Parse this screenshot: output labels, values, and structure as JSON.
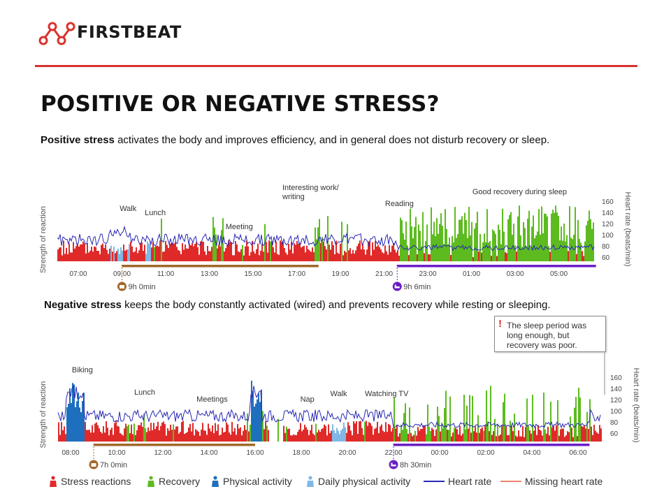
{
  "brand": {
    "name": "FIRSTBEAT",
    "accent": "#d8322e",
    "logo_icon": "molecule-icon"
  },
  "title": "POSITIVE OR NEGATIVE STRESS?",
  "positive": {
    "bold": "Positive stress",
    "text": " activates the body and improves efficiency, and in general does not disturb recovery or sleep."
  },
  "negative": {
    "bold": "Negative stress",
    "text": " keeps the body constantly activated (wired) and prevents recovery while resting or sleeping."
  },
  "callout": {
    "mark": "!",
    "text": "The sleep period was long enough, but recovery was poor."
  },
  "legend": [
    {
      "label": "Stress reactions",
      "color": "#e02a2a",
      "icon": "person-icon"
    },
    {
      "label": "Recovery",
      "color": "#5dbb1f",
      "icon": "person-icon"
    },
    {
      "label": "Physical activity",
      "color": "#1f6fbf",
      "icon": "person-icon"
    },
    {
      "label": "Daily physical activity",
      "color": "#7fb8e6",
      "icon": "person-icon"
    },
    {
      "label": "Heart rate",
      "color": "#2828b4",
      "icon": "line"
    },
    {
      "label": "Missing heart rate",
      "color": "#f08070",
      "icon": "line"
    }
  ],
  "chart_data": [
    {
      "type": "area",
      "ylabel": "Strength of reaction",
      "y2label": "Heart rate (beats/min)",
      "y2_ticks": [
        60,
        80,
        100,
        120,
        140,
        160
      ],
      "x_ticks": [
        "07:00",
        "09:00",
        "11:00",
        "13:00",
        "15:00",
        "17:00",
        "19:00",
        "21:00",
        "23:00",
        "01:00",
        "03:00",
        "05:00"
      ],
      "annotations": [
        {
          "text": "Walk",
          "at": 2.15
        },
        {
          "text": "Lunch",
          "at": 3.3
        },
        {
          "text": "Meeting",
          "at": 7.0
        },
        {
          "text": "Interesting work/ writing",
          "at": 9.6
        },
        {
          "text": "Reading",
          "at": 14.3
        },
        {
          "text": "Good recovery during sleep",
          "at": 18.3
        }
      ],
      "periods": [
        {
          "label": "9h 0min",
          "start": 2.0,
          "end": 11.0,
          "kind": "work",
          "color": "#a0682a"
        },
        {
          "label": "9h 6min",
          "start": 14.6,
          "end": 23.7,
          "kind": "sleep",
          "color": "#6a1fc6"
        }
      ]
    },
    {
      "type": "area",
      "ylabel": "Strength of reaction",
      "y2label": "Heart rate (beats/min)",
      "y2_ticks": [
        60,
        80,
        100,
        120,
        140,
        160
      ],
      "x_ticks": [
        "08:00",
        "10:00",
        "12:00",
        "14:00",
        "16:00",
        "18:00",
        "20:00",
        "22:00",
        "00:00",
        "02:00",
        "04:00",
        "06:00"
      ],
      "annotations": [
        {
          "text": "Biking",
          "at": 0.3
        },
        {
          "text": "Lunch",
          "at": 3.0
        },
        {
          "text": "Meetings",
          "at": 5.7
        },
        {
          "text": "Nap",
          "at": 10.2
        },
        {
          "text": "Walk",
          "at": 11.5
        },
        {
          "text": "Watching TV",
          "at": 13.0
        }
      ],
      "periods": [
        {
          "label": "7h 0min",
          "start": 1.0,
          "end": 8.0,
          "kind": "work",
          "color": "#a0682a"
        },
        {
          "label": "8h 30min",
          "start": 14.0,
          "end": 22.5,
          "kind": "sleep",
          "color": "#6a1fc6"
        }
      ]
    }
  ]
}
